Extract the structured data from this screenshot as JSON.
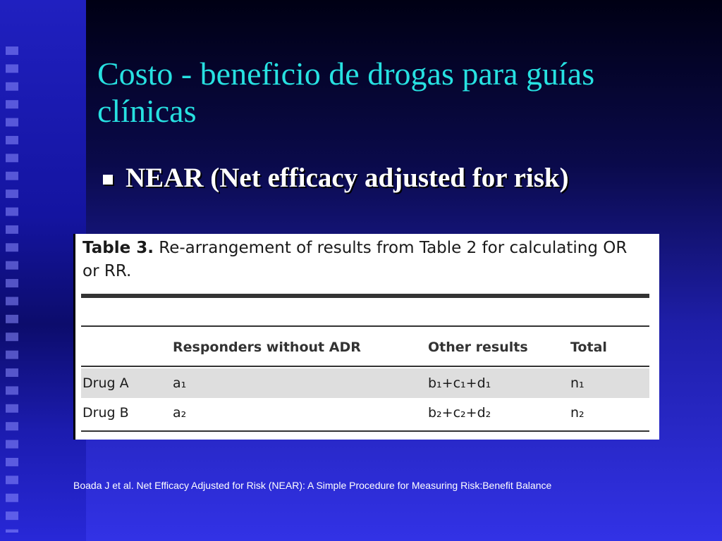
{
  "slide": {
    "title": "Costo - beneficio de drogas para guías clínicas",
    "bullet": "NEAR (Net efficacy adjusted for risk)"
  },
  "table": {
    "caption_label": "Table 3.",
    "caption_text": " Re-arrangement of results from Table 2 for calculating OR or RR.",
    "headers": [
      "",
      "Responders without ADR",
      "Other results",
      "Total"
    ],
    "rows": [
      [
        "Drug A",
        "a₁",
        "b₁+c₁+d₁",
        "n₁"
      ],
      [
        "Drug B",
        "a₂",
        "b₂+c₂+d₂",
        "n₂"
      ]
    ]
  },
  "footer": "Boada J et al. Net Efficacy Adjusted for Risk (NEAR): A Simple Procedure for Measuring Risk:Benefit Balance",
  "colors": {
    "title": "#27e1e1",
    "background_top": "#000014",
    "background_bottom": "#3232e6"
  }
}
